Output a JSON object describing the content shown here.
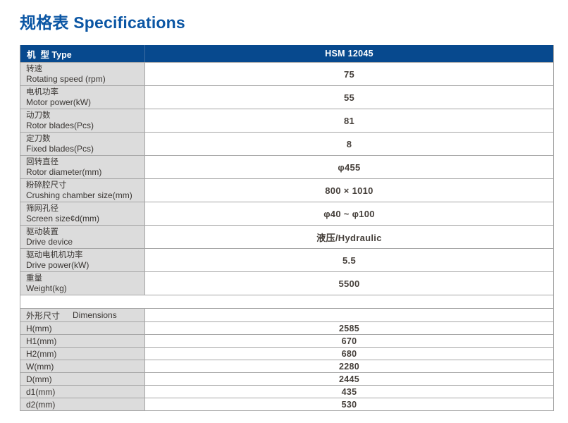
{
  "page": {
    "title": "规格表 Specifications"
  },
  "colors": {
    "accent_blue": "#0b56a4",
    "header_bg": "#07498e",
    "label_bg": "#dcdcdc",
    "border": "#a6a6a6"
  },
  "table": {
    "header": {
      "type_label": "机  型 Type",
      "model": "HSM 12045"
    },
    "rows": [
      {
        "zh": "转速",
        "en": "Rotating speed (rpm)",
        "value": "75"
      },
      {
        "zh": "电机功率",
        "en": "Motor power(kW)",
        "value": "55"
      },
      {
        "zh": "动刀数",
        "en": "Rotor blades(Pcs)",
        "value": "81"
      },
      {
        "zh": "定刀数",
        "en": "Fixed blades(Pcs)",
        "value": "8"
      },
      {
        "zh": "回转直径",
        "en": "Rotor diameter(mm)",
        "value": "φ455"
      },
      {
        "zh": "粉碎腔尺寸",
        "en": "Crushing chamber size(mm)",
        "value": "800 × 1010"
      },
      {
        "zh": "筛网孔径",
        "en": "Screen size¢d(mm)",
        "value": "φ40 ~ φ100"
      },
      {
        "zh": "驱动装置",
        "en": "Drive device",
        "value": "液压/Hydraulic"
      },
      {
        "zh": "驱动电机机功率",
        "en": "Drive power(kW)",
        "value": "5.5"
      },
      {
        "zh": "重量",
        "en": "Weight(kg)",
        "value": "5500"
      }
    ],
    "dimensions": {
      "header_zh": "外形尺寸",
      "header_en": "Dimensions",
      "rows": [
        {
          "label": "H(mm)",
          "value": "2585"
        },
        {
          "label": "H1(mm)",
          "value": "670"
        },
        {
          "label": "H2(mm)",
          "value": "680"
        },
        {
          "label": "W(mm)",
          "value": "2280"
        },
        {
          "label": "D(mm)",
          "value": "2445"
        },
        {
          "label": "d1(mm)",
          "value": "435"
        },
        {
          "label": "d2(mm)",
          "value": "530"
        }
      ]
    }
  }
}
